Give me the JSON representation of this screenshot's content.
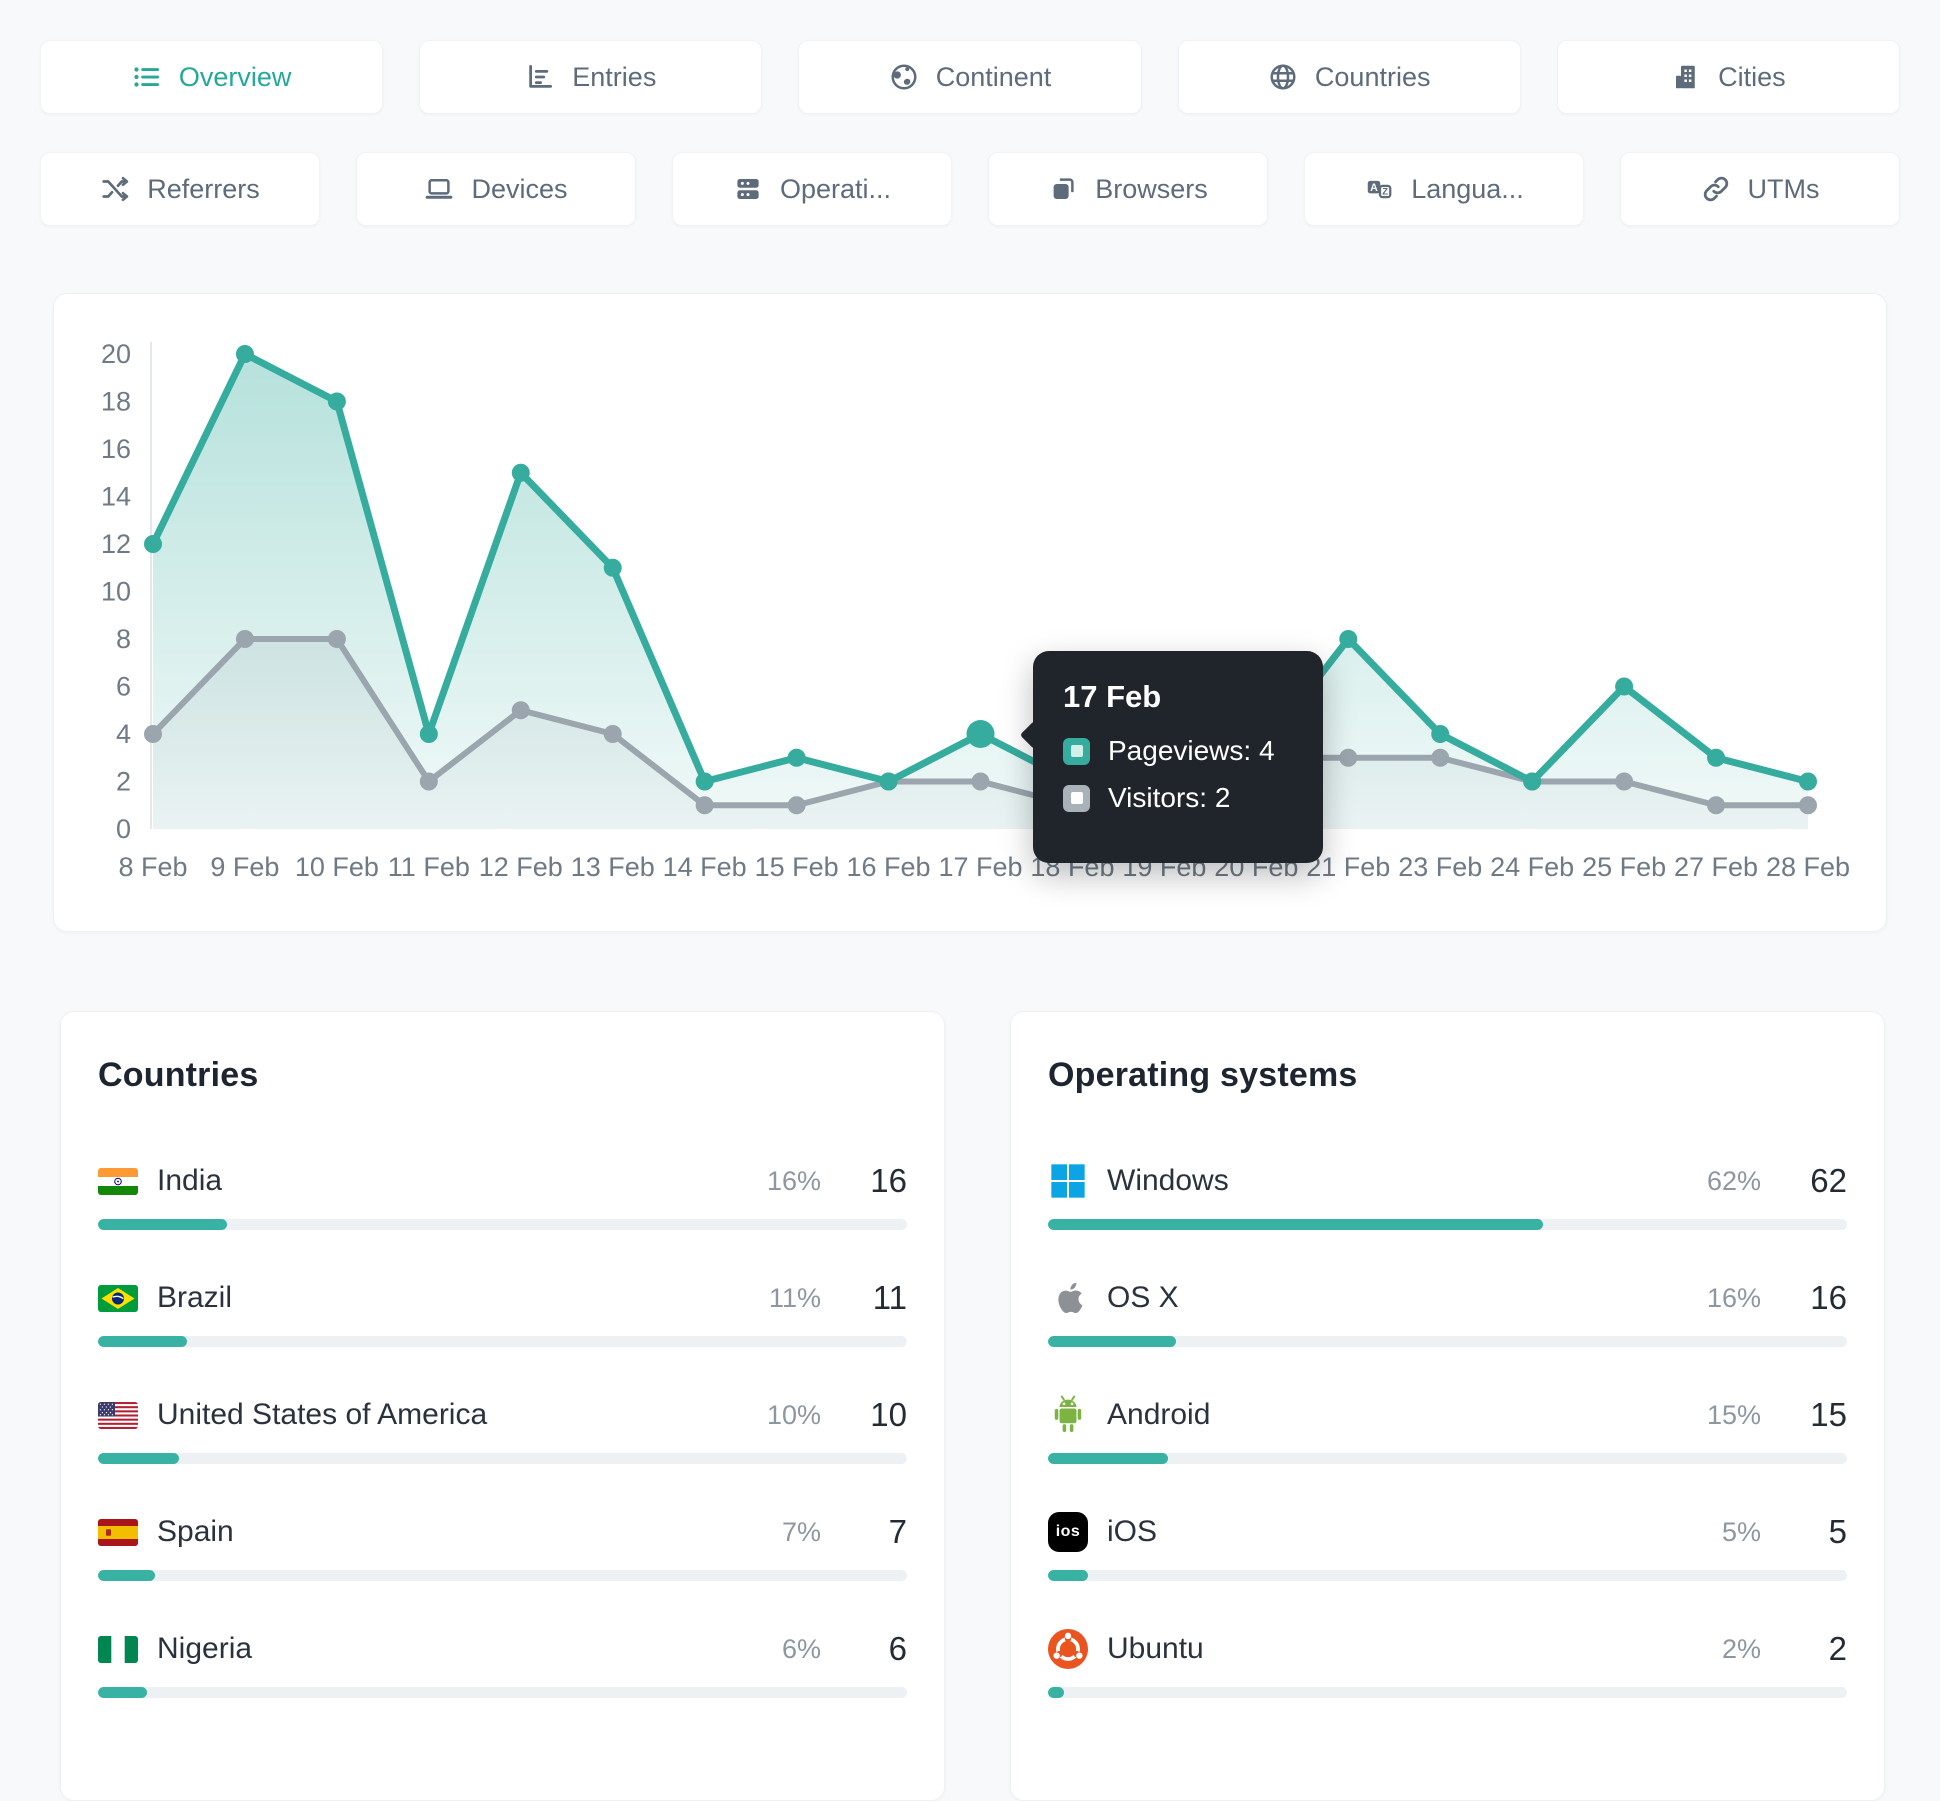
{
  "colors": {
    "accent": "#35ac9e",
    "visitors": "#9aa5ad",
    "tooltip_bg": "#1f252b",
    "bar_track": "#eef1f3"
  },
  "tabs": {
    "row1": [
      {
        "label": "Overview",
        "active": true
      },
      {
        "label": "Entries",
        "active": false
      },
      {
        "label": "Continent",
        "active": false
      },
      {
        "label": "Countries",
        "active": false
      },
      {
        "label": "Cities",
        "active": false
      }
    ],
    "row2": [
      {
        "label": "Referrers"
      },
      {
        "label": "Devices"
      },
      {
        "label": "Operati..."
      },
      {
        "label": "Browsers"
      },
      {
        "label": "Langua..."
      },
      {
        "label": "UTMs"
      }
    ]
  },
  "chart_data": {
    "type": "line",
    "title": "",
    "xlabel": "",
    "ylabel": "",
    "grid": false,
    "x": [
      "8 Feb",
      "9 Feb",
      "10 Feb",
      "11 Feb",
      "12 Feb",
      "13 Feb",
      "14 Feb",
      "15 Feb",
      "16 Feb",
      "17 Feb",
      "18 Feb",
      "19 Feb",
      "20 Feb",
      "21 Feb",
      "23 Feb",
      "24 Feb",
      "25 Feb",
      "27 Feb",
      "28 Feb"
    ],
    "series": [
      {
        "name": "Pageviews",
        "color": "#35ac9e",
        "values": [
          12,
          20,
          18,
          4,
          15,
          11,
          2,
          3,
          2,
          4,
          2,
          1,
          3,
          8,
          4,
          2,
          6,
          3,
          2
        ]
      },
      {
        "name": "Visitors",
        "color": "#9aa5ad",
        "values": [
          4,
          8,
          8,
          2,
          5,
          4,
          1,
          1,
          2,
          2,
          1,
          1,
          3,
          3,
          3,
          2,
          2,
          1,
          1
        ]
      }
    ],
    "ylim": [
      0,
      20
    ],
    "yticks": [
      0,
      2,
      4,
      6,
      8,
      10,
      12,
      14,
      16,
      18,
      20
    ],
    "highlight": {
      "x_index": 9,
      "series": "Pageviews"
    },
    "tooltip": {
      "title": "17 Feb",
      "rows": [
        {
          "text": "Pageviews: 4",
          "color": "#35ac9e"
        },
        {
          "text": "Visitors: 2",
          "color": "#a9b2b8"
        }
      ]
    }
  },
  "panels": {
    "countries": {
      "title": "Countries",
      "rows": [
        {
          "name": "India",
          "percent": "16%",
          "value": "16",
          "pct": 16
        },
        {
          "name": "Brazil",
          "percent": "11%",
          "value": "11",
          "pct": 11
        },
        {
          "name": "United States of America",
          "percent": "10%",
          "value": "10",
          "pct": 10
        },
        {
          "name": "Spain",
          "percent": "7%",
          "value": "7",
          "pct": 7
        },
        {
          "name": "Nigeria",
          "percent": "6%",
          "value": "6",
          "pct": 6
        }
      ]
    },
    "os": {
      "title": "Operating systems",
      "ios_badge_text": "ios",
      "rows": [
        {
          "name": "Windows",
          "percent": "62%",
          "value": "62",
          "pct": 62
        },
        {
          "name": "OS X",
          "percent": "16%",
          "value": "16",
          "pct": 16
        },
        {
          "name": "Android",
          "percent": "15%",
          "value": "15",
          "pct": 15
        },
        {
          "name": "iOS",
          "percent": "5%",
          "value": "5",
          "pct": 5
        },
        {
          "name": "Ubuntu",
          "percent": "2%",
          "value": "2",
          "pct": 2
        }
      ]
    }
  }
}
